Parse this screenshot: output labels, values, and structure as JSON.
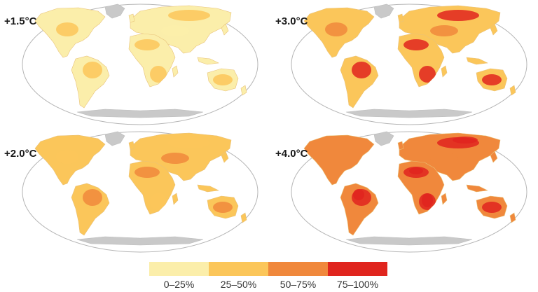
{
  "panels": [
    {
      "id": "p15",
      "label": "+1.5°C",
      "level": 1
    },
    {
      "id": "p30",
      "label": "+3.0°C",
      "level": 3
    },
    {
      "id": "p20",
      "label": "+2.0°C",
      "level": 2
    },
    {
      "id": "p40",
      "label": "+4.0°C",
      "level": 4
    }
  ],
  "legend": {
    "items": [
      {
        "label": "0–25%",
        "color": "#fbeeaa"
      },
      {
        "label": "25–50%",
        "color": "#fbc65a"
      },
      {
        "label": "50–75%",
        "color": "#f0883c"
      },
      {
        "label": "75–100%",
        "color": "#e0251e"
      }
    ]
  },
  "colors": {
    "ocean": "#ffffff",
    "outline": "#b5b5b5",
    "ice": "#c9c9c9"
  }
}
